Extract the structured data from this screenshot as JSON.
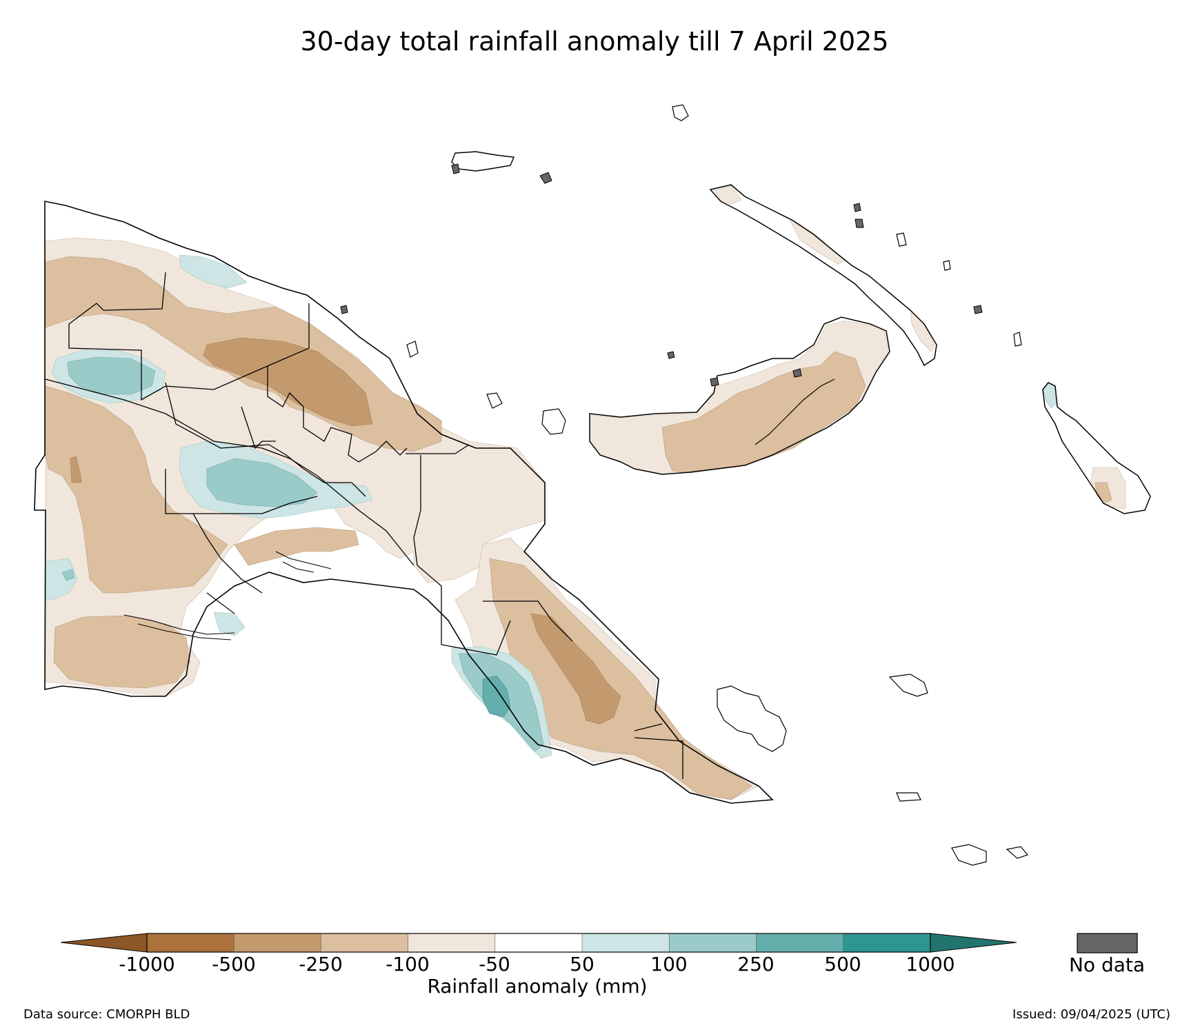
{
  "title": "30-day total rainfall anomaly till 7 April 2025",
  "legend": {
    "label": "Rainfall anomaly (mm)",
    "ticks": [
      "-1000",
      "-500",
      "-250",
      "-100",
      "-50",
      "50",
      "100",
      "250",
      "500",
      "1000"
    ],
    "colors": [
      "#8c5627",
      "#ab723c",
      "#c39a6e",
      "#dbbf9f",
      "#f1e6dc",
      "#ffffff",
      "#cde5e4",
      "#9acbc9",
      "#64afac",
      "#2e9690",
      "#23746e"
    ],
    "no_data_label": "No data",
    "no_data_color": "#666666"
  },
  "footer": {
    "source": "Data source: CMORPH BLD",
    "issued": "Issued: 09/04/2025 (UTC)"
  }
}
